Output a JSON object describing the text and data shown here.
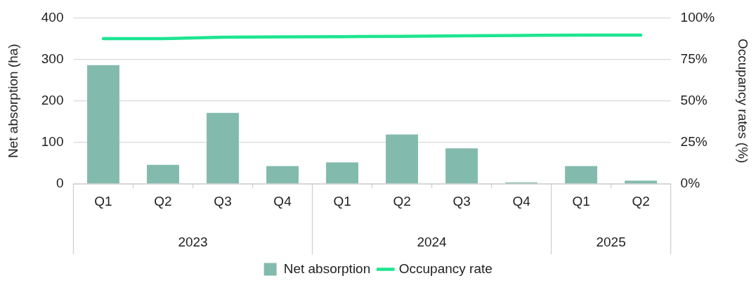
{
  "chart_data": {
    "type": "bar",
    "ylabel": "Net absorption (ha)",
    "y2label": "Occupancy rates (%)",
    "categories": [
      "Q1",
      "Q2",
      "Q3",
      "Q4",
      "Q1",
      "Q2",
      "Q3",
      "Q4",
      "Q1",
      "Q2"
    ],
    "annotations": [
      "2023",
      "2024",
      "2025"
    ],
    "series": [
      {
        "name": "Net absorption",
        "color": "#82bbad",
        "values": [
          286,
          46,
          171,
          43,
          52,
          119,
          86,
          4,
          43,
          8
        ]
      },
      {
        "name": "Occupancy rate",
        "type": "line",
        "axis": "y2",
        "color": "#1de591",
        "values": [
          87.5,
          87.5,
          88.3,
          88.5,
          88.7,
          88.9,
          89.2,
          89.4,
          89.6,
          89.6
        ]
      }
    ],
    "ylim": [
      0,
      400
    ],
    "yticks": [
      0,
      100,
      200,
      300,
      400
    ],
    "y2lim": [
      0,
      100
    ],
    "y2ticks": [
      {
        "value": 0,
        "label": "0%"
      },
      {
        "value": 25,
        "label": "25%"
      },
      {
        "value": 50,
        "label": "50%"
      },
      {
        "value": 75,
        "label": "75%"
      },
      {
        "value": 100,
        "label": "100%"
      }
    ],
    "grid": "y",
    "legend": "bottom",
    "marker": "none"
  }
}
